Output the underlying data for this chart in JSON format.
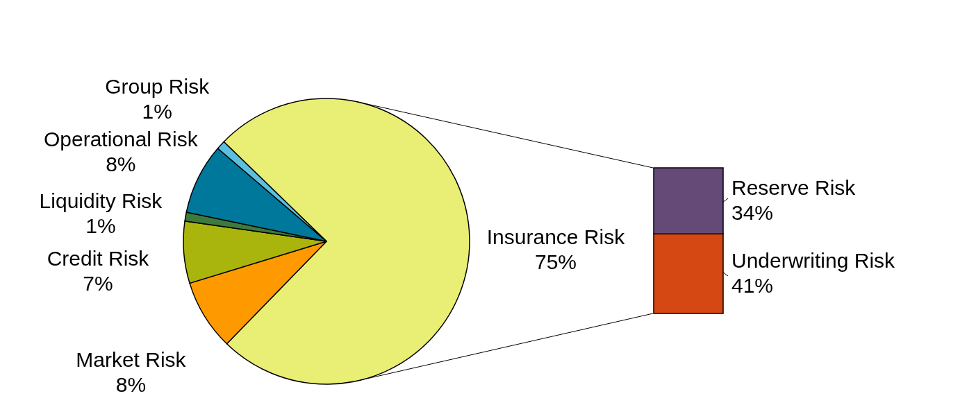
{
  "chart_data": [
    {
      "type": "pie",
      "categories": [
        "Insurance Risk",
        "Market Risk",
        "Credit Risk",
        "Liquidity Risk",
        "Operational Risk",
        "Group Risk"
      ],
      "values": [
        75,
        8,
        7,
        1,
        8,
        1
      ],
      "colors": [
        "#e9ee74",
        "#ff9900",
        "#a9b50c",
        "#3d7a3d",
        "#00789c",
        "#5bbfe0"
      ],
      "value_labels": [
        "75%",
        "8%",
        "7%",
        "1%",
        "8%",
        "1%"
      ]
    },
    {
      "type": "bar",
      "stacked": true,
      "categories": [
        null
      ],
      "series": [
        {
          "name": "Underwriting Risk",
          "color": "#d64813",
          "values": [
            41
          ],
          "value_labels": [
            "41%"
          ]
        },
        {
          "name": "Reserve Risk",
          "color": "#654a78",
          "values": [
            34
          ],
          "value_labels": [
            "34%"
          ]
        }
      ]
    }
  ]
}
